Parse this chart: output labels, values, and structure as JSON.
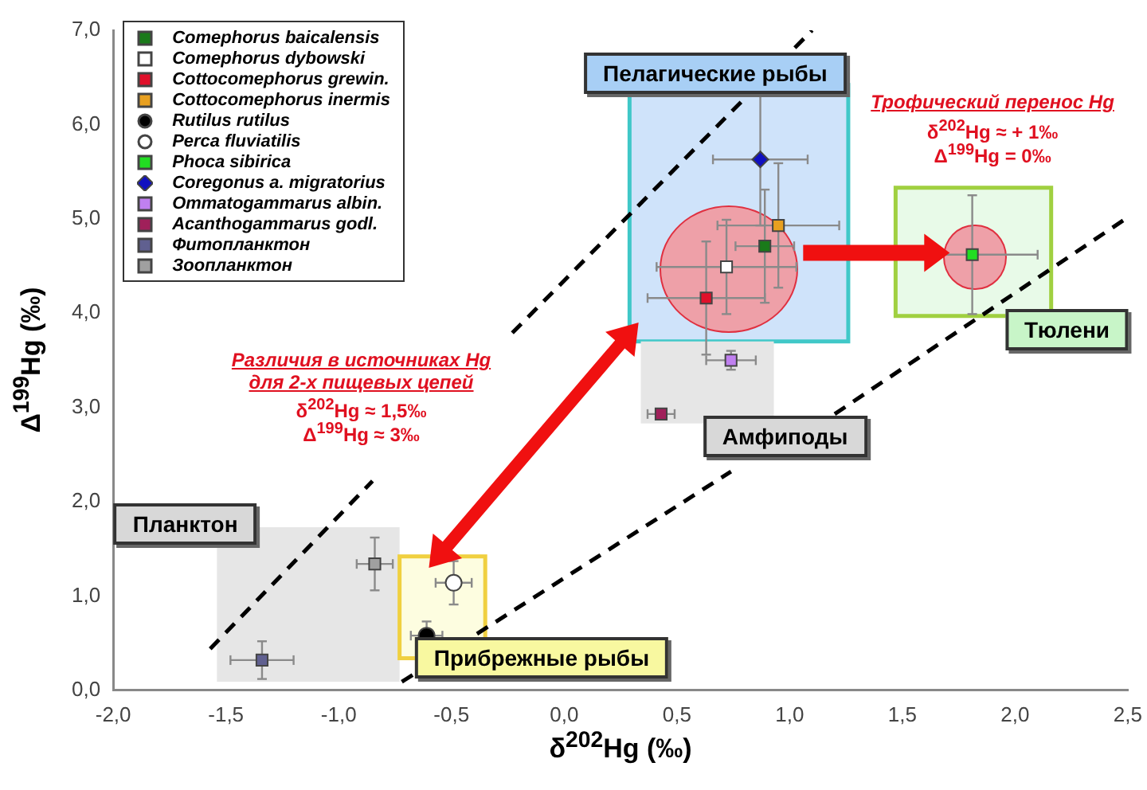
{
  "chart_data": {
    "type": "scatter",
    "xlabel": "δ$^{202}$Hg (‰)",
    "ylabel": "Δ$^{199}$Hg (‰)",
    "xlim": [
      -2,
      2.5
    ],
    "ylim": [
      0,
      7
    ],
    "xticks": [
      {
        "value": -2,
        "label": "-2,0"
      },
      {
        "value": -1.5,
        "label": "-1,5"
      },
      {
        "value": -1,
        "label": "-1,0"
      },
      {
        "value": -0.5,
        "label": "-0,5"
      },
      {
        "value": 0,
        "label": "0,0"
      },
      {
        "value": 0.5,
        "label": "0,5"
      },
      {
        "value": 1,
        "label": "1,0"
      },
      {
        "value": 1.5,
        "label": "1,5"
      },
      {
        "value": 2,
        "label": "2,0"
      },
      {
        "value": 2.5,
        "label": "2,5"
      }
    ],
    "yticks": [
      {
        "value": 0,
        "label": "0,0"
      },
      {
        "value": 1,
        "label": "1,0"
      },
      {
        "value": 2,
        "label": "2,0"
      },
      {
        "value": 3,
        "label": "3,0"
      },
      {
        "value": 4,
        "label": "4,0"
      },
      {
        "value": 5,
        "label": "5,0"
      },
      {
        "value": 6,
        "label": "6,0"
      },
      {
        "value": 7,
        "label": "7,0"
      }
    ],
    "legend": "top left",
    "series": [
      {
        "name": "Comephorus baicalensis",
        "color": "#1a7a1a",
        "marker": "square",
        "x": [
          0.89
        ],
        "values": [
          4.71
        ],
        "xerrors": [
          0.13
        ],
        "errors": [
          0.6
        ]
      },
      {
        "name": "Comephorus dybowski",
        "color": "#ffffff",
        "marker": "square",
        "x": [
          0.72
        ],
        "values": [
          4.49
        ],
        "xerrors": [
          0.31
        ],
        "errors": [
          0.5
        ]
      },
      {
        "name": "Cottocomephorus grewin.",
        "color": "#e0102a",
        "marker": "square",
        "x": [
          0.63
        ],
        "values": [
          4.16
        ],
        "xerrors": [
          0.26
        ],
        "errors": [
          0.6
        ]
      },
      {
        "name": "Cottocomephorus inermis",
        "color": "#e8a020",
        "marker": "square",
        "x": [
          0.95
        ],
        "values": [
          4.93
        ],
        "xerrors": [
          0.27
        ],
        "errors": [
          0.66
        ]
      },
      {
        "name": "Rutilus rutilus",
        "color": "#000000",
        "marker": "circle",
        "x": [
          -0.61
        ],
        "values": [
          0.58
        ],
        "xerrors": [
          0.07
        ],
        "errors": [
          0.15
        ]
      },
      {
        "name": "Perca fluviatilis",
        "color": "#ffffff",
        "marker": "circle",
        "x": [
          -0.49
        ],
        "values": [
          1.14
        ],
        "xerrors": [
          0.08
        ],
        "errors": [
          0.23
        ]
      },
      {
        "name": "Phoca sibirica",
        "color": "#22dd22",
        "marker": "square",
        "x": [
          1.81
        ],
        "values": [
          4.62
        ],
        "xerrors": [
          0.29
        ],
        "errors": [
          0.63
        ]
      },
      {
        "name": "Coregonus a. migratorius",
        "color": "#1010c0",
        "marker": "diamond",
        "x": [
          0.87
        ],
        "values": [
          5.63
        ],
        "xerrors": [
          0.21
        ],
        "errors": [
          0.7
        ]
      },
      {
        "name": "Ommatogammarus albin.",
        "color": "#c080f0",
        "marker": "square",
        "x": [
          0.74
        ],
        "values": [
          3.5
        ],
        "xerrors": [
          0.11
        ],
        "errors": [
          0.1
        ]
      },
      {
        "name": "Acanthogammarus godl.",
        "color": "#a0205a",
        "marker": "square",
        "x": [
          0.43
        ],
        "values": [
          2.93
        ],
        "xerrors": [
          0.06
        ],
        "errors": [
          0.05
        ]
      },
      {
        "name": "Фитопланктон",
        "color": "#606090",
        "marker": "square",
        "x": [
          -1.34
        ],
        "values": [
          0.32
        ],
        "xerrors": [
          0.14
        ],
        "errors": [
          0.2
        ]
      },
      {
        "name": "Зоопланктон",
        "color": "#a0a0a0",
        "marker": "square",
        "x": [
          -0.84
        ],
        "values": [
          1.34
        ],
        "xerrors": [
          0.08
        ],
        "errors": [
          0.28
        ]
      },
      {
        "type": "line",
        "color": "#000000",
        "line_style": "dashed",
        "marker": "none",
        "x": [
          -1.57,
          -0.85,
          -0.5,
          -0.23,
          1.1
        ],
        "values": [
          0.44,
          2.22,
          null,
          3.79,
          7.0
        ]
      },
      {
        "type": "line",
        "color": "#000000",
        "line_style": "dashed",
        "marker": "none",
        "x": [
          -0.72,
          0.74,
          1.0,
          1.2,
          2.49
        ],
        "values": [
          0.09,
          2.32,
          null,
          2.93,
          5.0
        ]
      }
    ],
    "annotations": [
      "Пелагические рыбы",
      "Трофический перенос Hg",
      "δ$^{202}$Hg ≈ + 1‰",
      "Δ$^{199}$Hg = 0‰",
      "Тюлени",
      "Различия в источниках Hg",
      "для 2-х пищевых цепей",
      "δ$^{202}$Hg ≈ 1,5‰",
      "Δ$^{199}$Hg ≈ 3‰",
      "Амфиподы",
      "Планктон",
      "Прибрежные рыбы"
    ]
  }
}
